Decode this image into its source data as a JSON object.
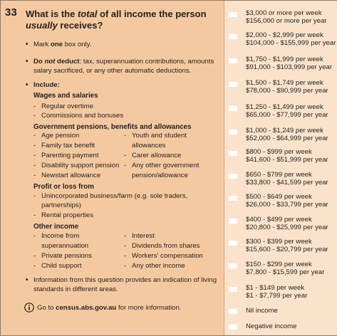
{
  "question": {
    "number": "33",
    "title_pre": "What is the ",
    "title_em1": "total",
    "title_mid": " of all income the person",
    "title_em2": "usually",
    "title_post": " receives?"
  },
  "instructions": {
    "mark_pre": "Mark ",
    "mark_bold": "one",
    "mark_post": " box only.",
    "deduct_bold1": "Do ",
    "deduct_em": "not",
    "deduct_bold2": " deduct",
    "deduct_line1": ": tax, superannuation contributions, amounts",
    "deduct_line2": "salary sacrificed, or any other automatic deductions.",
    "include_label": "Include:"
  },
  "groups": {
    "wages": {
      "heading": "Wages and salaries",
      "items": [
        "Regular overtime",
        "Commissions and bonuses"
      ]
    },
    "pensions": {
      "heading": "Government pensions, benefits and allowances",
      "left": [
        "Age pension",
        "Family tax benefit",
        "Parenting payment",
        "Disability support pension",
        "Newstart allowance"
      ],
      "right_1a": "Youth and student",
      "right_1b": "allowances",
      "right_2": "Carer allowance",
      "right_3a": "Any other government",
      "right_3b": "pension/allowance"
    },
    "profit": {
      "heading": "Profit or loss from",
      "item1a": "Unincorporated business/farm (e.g. sole traders,",
      "item1b": "partnerships)",
      "item2": "Rental properties"
    },
    "other": {
      "heading": "Other income",
      "left_1a": "Income from",
      "left_1b": "superannuation",
      "left_2": "Private pensions",
      "left_3": "Child support",
      "right": [
        "Interest",
        "Dividends from shares",
        "Workers' compensation",
        "Any other income"
      ]
    }
  },
  "footer": {
    "info_line1": "Information from this question provides an indication of living",
    "info_line2": "standards in different areas.",
    "goto_pre": "Go to ",
    "goto_link": "census.abs.gov.au",
    "goto_post": " for more information."
  },
  "options": [
    {
      "line1": "$3,000 or more per week",
      "line2": "$156,000 or more per year"
    },
    {
      "line1": "$2,000 - $2,999 per week",
      "line2": "$104,000 - $155,999 per year"
    },
    {
      "line1": "$1,750 - $1,999 per week",
      "line2": "$91,000 - $103,999 per year"
    },
    {
      "line1": "$1,500 - $1,749 per week",
      "line2": "$78,000 - $90,999 per year"
    },
    {
      "line1": "$1,250 - $1,499 per week",
      "line2": "$65,000 - $77,999 per year"
    },
    {
      "line1": "$1,000 - $1,249 per week",
      "line2": "$52,000 - $64,999 per year"
    },
    {
      "line1": "$800 - $999 per week",
      "line2": "$41,600 - $51,999 per year"
    },
    {
      "line1": "$650 - $799 per week",
      "line2": "$33,800 - $41,599 per year"
    },
    {
      "line1": "$500 - $649 per week",
      "line2": "$26,000 - $33,799 per year"
    },
    {
      "line1": "$400 - $499 per week",
      "line2": "$20,800 - $25,999 per year"
    },
    {
      "line1": "$300 - $399 per week",
      "line2": "$15,600 - $20,799 per year"
    },
    {
      "line1": "$150 - $299 per week",
      "line2": "$7,800 - $15,599 per year"
    },
    {
      "line1": "$1 - $149 per week",
      "line2": "$1 - $7,799 per year"
    },
    {
      "line1": "Nil income",
      "line2": ""
    },
    {
      "line1": "Negative income",
      "line2": ""
    }
  ],
  "colors": {
    "panel_left": "#f5c9a0",
    "panel_right": "#fbe3cb",
    "checkbox": "#ffffff"
  }
}
